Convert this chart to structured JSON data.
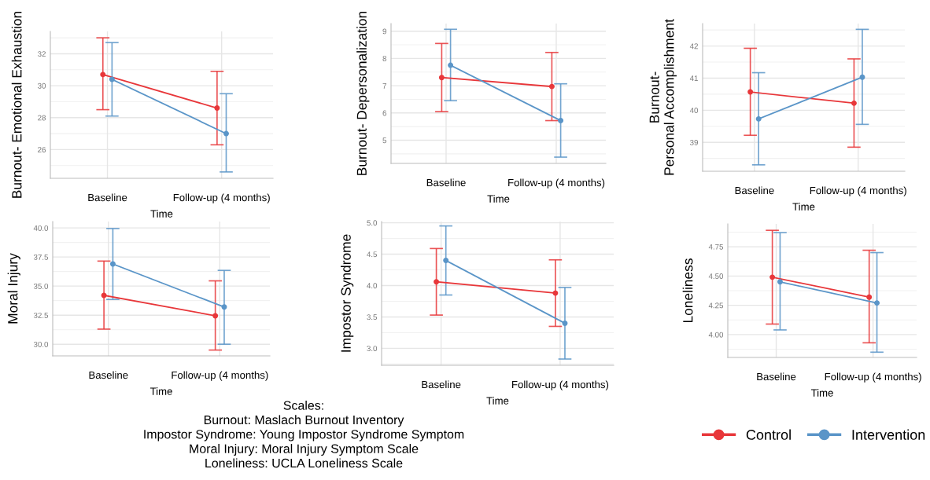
{
  "chart_data": [
    {
      "type": "line",
      "ylabel": "Burnout- Emotional Exhaustion",
      "xlabel": "Time",
      "categories": [
        "Baseline",
        "Follow-up (4 months)"
      ],
      "ylim": [
        24.2,
        33.4
      ],
      "yticks": [
        26,
        28,
        30,
        32
      ],
      "grid": true,
      "marker": "circle",
      "series": [
        {
          "color": "#e8373a",
          "values": [
            30.7,
            28.6
          ],
          "errors": [
            [
              28.5,
              33.0
            ],
            [
              26.3,
              30.9
            ]
          ]
        },
        {
          "color": "#5a95c8",
          "values": [
            30.4,
            27.0
          ],
          "errors": [
            [
              28.1,
              32.7
            ],
            [
              24.6,
              29.5
            ]
          ]
        }
      ]
    },
    {
      "type": "line",
      "ylabel": "Burnout- Depersonalization",
      "xlabel": "Time",
      "categories": [
        "Baseline",
        "Follow-up (4 months)"
      ],
      "ylim": [
        4.15,
        9.28
      ],
      "yticks": [
        5,
        6,
        7,
        8,
        9
      ],
      "grid": true,
      "marker": "circle",
      "series": [
        {
          "color": "#e8373a",
          "values": [
            7.3,
            6.97
          ],
          "errors": [
            [
              6.05,
              8.55
            ],
            [
              5.72,
              8.22
            ]
          ]
        },
        {
          "color": "#5a95c8",
          "values": [
            7.75,
            5.72
          ],
          "errors": [
            [
              6.45,
              9.07
            ],
            [
              4.38,
              7.07
            ]
          ]
        }
      ]
    },
    {
      "type": "line",
      "ylabel": "Burnout-\nPersonal Accomplishment",
      "xlabel": "Time",
      "categories": [
        "Baseline",
        "Follow-up (4 months)"
      ],
      "ylim": [
        38.1,
        42.7
      ],
      "yticks": [
        39,
        40,
        41,
        42
      ],
      "grid": true,
      "marker": "circle",
      "series": [
        {
          "color": "#e8373a",
          "values": [
            40.57,
            40.22
          ],
          "errors": [
            [
              39.22,
              41.93
            ],
            [
              38.85,
              41.6
            ]
          ]
        },
        {
          "color": "#5a95c8",
          "values": [
            39.73,
            41.03
          ],
          "errors": [
            [
              38.3,
              41.17
            ],
            [
              39.56,
              42.52
            ]
          ]
        }
      ]
    },
    {
      "type": "line",
      "ylabel": "Moral Injury",
      "xlabel": "Time",
      "categories": [
        "Baseline",
        "Follow-up (4 months)"
      ],
      "ylim": [
        29.0,
        40.55
      ],
      "yticks": [
        {
          "value": 30,
          "label": "30.0"
        },
        {
          "value": 32.5,
          "label": "32.5"
        },
        {
          "value": 35,
          "label": "35.0"
        },
        {
          "value": 37.5,
          "label": "37.5"
        },
        {
          "value": 40,
          "label": "40.0"
        }
      ],
      "grid": true,
      "marker": "circle",
      "series": [
        {
          "color": "#e8373a",
          "values": [
            34.2,
            32.45
          ],
          "errors": [
            [
              31.3,
              37.15
            ],
            [
              29.5,
              35.45
            ]
          ]
        },
        {
          "color": "#5a95c8",
          "values": [
            36.9,
            33.2
          ],
          "errors": [
            [
              33.85,
              39.95
            ],
            [
              30.0,
              36.35
            ]
          ]
        }
      ]
    },
    {
      "type": "line",
      "ylabel": "Impostor Syndrome",
      "xlabel": "Time",
      "categories": [
        "Baseline",
        "Follow-up (4 months)"
      ],
      "ylim": [
        2.73,
        5.02
      ],
      "yticks": [
        {
          "value": 3,
          "label": "3.0"
        },
        3.5,
        {
          "value": 4,
          "label": "4.0"
        },
        4.5,
        {
          "value": 5,
          "label": "5.0"
        }
      ],
      "grid": true,
      "marker": "circle",
      "annotations": [
        "Scales:\nBurnout: Maslach Burnout Inventory\nImpostor Syndrome: Young Impostor Syndrome Symptom\nMoral Injury: Moral Injury Symptom Scale\nLoneliness: UCLA Loneliness Scale"
      ],
      "series": [
        {
          "color": "#e8373a",
          "values": [
            4.06,
            3.88
          ],
          "errors": [
            [
              3.53,
              4.59
            ],
            [
              3.35,
              4.41
            ]
          ]
        },
        {
          "color": "#5a95c8",
          "values": [
            4.4,
            3.4
          ],
          "errors": [
            [
              3.85,
              4.95
            ],
            [
              2.83,
              3.97
            ]
          ]
        }
      ]
    },
    {
      "type": "line",
      "ylabel": "Loneliness",
      "xlabel": "Time",
      "categories": [
        "Baseline",
        "Follow-up (4 months)"
      ],
      "ylim": [
        3.805,
        4.945
      ],
      "yticks": [
        {
          "value": 4,
          "label": "4.00"
        },
        4.25,
        {
          "value": 4.5,
          "label": "4.50"
        },
        4.75
      ],
      "grid": true,
      "marker": "circle",
      "legend": "bottom",
      "series": [
        {
          "name": "Control",
          "color": "#e8373a",
          "values": [
            4.49,
            4.32
          ],
          "errors": [
            [
              4.09,
              4.89
            ],
            [
              3.93,
              4.72
            ]
          ]
        },
        {
          "name": "Intervention",
          "color": "#5a95c8",
          "values": [
            4.45,
            4.27
          ],
          "errors": [
            [
              4.04,
              4.87
            ],
            [
              3.85,
              4.7
            ]
          ]
        }
      ]
    }
  ]
}
